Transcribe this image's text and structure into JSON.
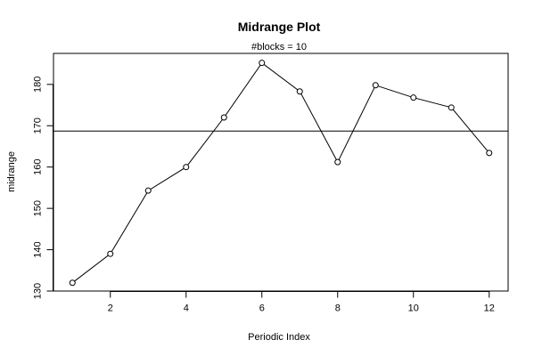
{
  "chart_data": {
    "type": "line",
    "title": "Midrange Plot",
    "subtitle": "#blocks =  10",
    "xlabel": "Periodic Index",
    "ylabel": "midrange",
    "x": [
      1,
      2,
      3,
      4,
      5,
      6,
      7,
      8,
      9,
      10,
      11,
      12
    ],
    "series": [
      {
        "values": [
          132.0,
          139.0,
          154.3,
          160.0,
          172.0,
          185.2,
          178.3,
          161.2,
          179.8,
          176.8,
          174.4,
          163.4
        ]
      }
    ],
    "reference_line": 168.7,
    "xlim": [
      0.5,
      12.5
    ],
    "ylim": [
      130.0,
      187.5
    ],
    "xticks": [
      2,
      4,
      6,
      8,
      10,
      12
    ],
    "yticks": [
      130,
      140,
      150,
      160,
      170,
      180
    ],
    "grid": false,
    "marker": "open-circle"
  }
}
